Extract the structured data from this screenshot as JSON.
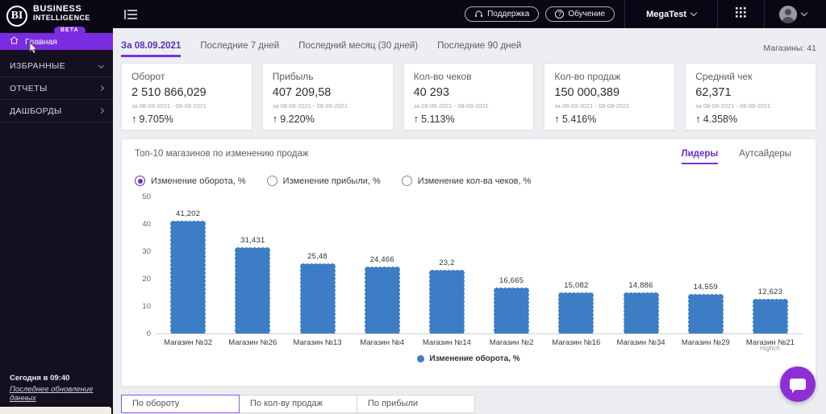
{
  "brand": {
    "logo_text": "BI",
    "name_line1": "BUSINESS",
    "name_line2": "INTELLIGENCE",
    "badge": "BETA"
  },
  "topbar": {
    "support_label": "Поддержка",
    "training_label": "Обучение",
    "account_label": "MegaTest"
  },
  "sidebar": {
    "items": [
      {
        "id": "home",
        "label": "Главная",
        "active": true,
        "chevron": "none"
      },
      {
        "id": "favorites",
        "label": "ИЗБРАННЫЕ",
        "active": false,
        "chevron": "down"
      },
      {
        "id": "reports",
        "label": "ОТЧЕТЫ",
        "active": false,
        "chevron": "right"
      },
      {
        "id": "dashboards",
        "label": "ДАШБОРДЫ",
        "active": false,
        "chevron": "right"
      }
    ],
    "footer": {
      "updated_time": "Сегодня в 09:40",
      "updated_label": "Последнее обновление данных"
    }
  },
  "period_tabs": [
    {
      "label": "За 08.09.2021",
      "active": true
    },
    {
      "label": "Последние 7 дней",
      "active": false
    },
    {
      "label": "Последний месяц (30 дней)",
      "active": false
    },
    {
      "label": "Последние 90 дней",
      "active": false
    }
  ],
  "stores_count_label": "Магазины: 41",
  "kpi_cards": [
    {
      "title": "Оборот",
      "value": "2 510 866,029",
      "period": "за 08-09-2021 - 08-09-2021",
      "change": "9.705%",
      "direction": "up"
    },
    {
      "title": "Прибыль",
      "value": "407 209,58",
      "period": "за 08-09-2021 - 08-09-2021",
      "change": "9.220%",
      "direction": "up"
    },
    {
      "title": "Кол-во чеков",
      "value": "40 293",
      "period": "за 08-09-2021 - 08-09-2021",
      "change": "5.113%",
      "direction": "up"
    },
    {
      "title": "Кол-во продаж",
      "value": "150 000,389",
      "period": "за 08-09-2021 - 08-09-2021",
      "change": "5.416%",
      "direction": "up"
    },
    {
      "title": "Средний чек",
      "value": "62,371",
      "period": "за 08-09-2021 - 08-09-2021",
      "change": "4.358%",
      "direction": "up"
    }
  ],
  "chart_panel": {
    "title": "Топ-10 магазинов по изменению продаж",
    "tabs": [
      {
        "label": "Лидеры",
        "active": true
      },
      {
        "label": "Аутсайдеры",
        "active": false
      }
    ],
    "metric_options": [
      {
        "label": "Изменение оборота, %",
        "selected": true
      },
      {
        "label": "Изменение прибыли, %",
        "selected": false
      },
      {
        "label": "Изменение кол-ва чеков, %",
        "selected": false
      }
    ],
    "legend": {
      "label": "Изменение оборота, %",
      "color": "#3c7dc5"
    },
    "credit": "Highch"
  },
  "chart_data": {
    "type": "bar",
    "title": "Топ-10 магазинов по изменению продаж",
    "categories": [
      "Магазин №32",
      "Магазин №26",
      "Магазин №13",
      "Магазин №4",
      "Магазин №14",
      "Магазин №2",
      "Магазин №16",
      "Магазин №34",
      "Магазин №29",
      "Магазин №21"
    ],
    "values": [
      41.202,
      31.431,
      25.48,
      24.466,
      23.2,
      16.665,
      15.082,
      14.886,
      14.559,
      12.623
    ],
    "value_labels": [
      "41,202",
      "31,431",
      "25,48",
      "24,466",
      "23,2",
      "16,665",
      "15,082",
      "14,886",
      "14,559",
      "12,623"
    ],
    "xlabel": "",
    "ylabel": "",
    "ylim": [
      0,
      50
    ],
    "yticks": [
      0,
      10,
      20,
      30,
      40,
      50
    ],
    "grid": false,
    "legend_position": "bottom",
    "bar_color": "#3c7dc5",
    "series_name": "Изменение оборота, %"
  },
  "bottom_tabs": [
    {
      "label": "По обороту",
      "active": true
    },
    {
      "label": "По кол-ву продаж",
      "active": false
    },
    {
      "label": "По прибыли",
      "active": false
    }
  ],
  "colors": {
    "accent": "#7b2fe2",
    "bar": "#3c7dc5",
    "topbar_bg": "#0a0714",
    "sidebar_bg": "#14101f",
    "active_item": "#7a2ce0"
  }
}
